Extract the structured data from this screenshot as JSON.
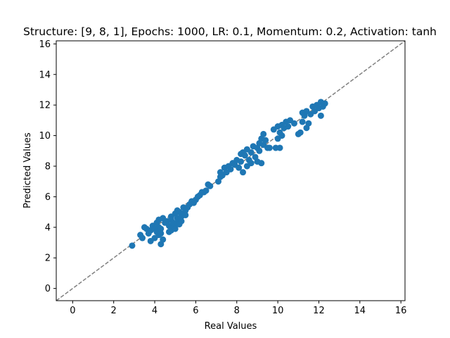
{
  "chart_data": {
    "type": "scatter",
    "title": "Structure: [9, 8, 1], Epochs: 1000, LR: 0.1, Momentum: 0.2, Activation: tanh",
    "xlabel": "Real Values",
    "ylabel": "Predicted Values",
    "xlim": [
      -0.8,
      16.2
    ],
    "ylim": [
      -0.8,
      16.2
    ],
    "xticks": [
      0,
      2,
      4,
      6,
      8,
      10,
      12,
      14,
      16
    ],
    "yticks": [
      0,
      2,
      4,
      6,
      8,
      10,
      12,
      14,
      16
    ],
    "grid": false,
    "reference_line": {
      "style": "dashed",
      "color": "#808080",
      "from": [
        -0.8,
        -0.8
      ],
      "to": [
        16.2,
        16.2
      ]
    },
    "marker_color": "#1f77b4",
    "series": [
      {
        "points": [
          [
            2.9,
            2.8
          ],
          [
            3.3,
            3.5
          ],
          [
            3.4,
            3.3
          ],
          [
            3.5,
            4.0
          ],
          [
            3.6,
            3.9
          ],
          [
            3.7,
            3.6
          ],
          [
            3.8,
            3.8
          ],
          [
            3.8,
            3.1
          ],
          [
            3.9,
            4.1
          ],
          [
            4.0,
            3.9
          ],
          [
            4.0,
            3.3
          ],
          [
            4.1,
            4.3
          ],
          [
            4.1,
            3.7
          ],
          [
            4.2,
            3.5
          ],
          [
            4.2,
            4.0
          ],
          [
            4.2,
            4.5
          ],
          [
            4.3,
            3.6
          ],
          [
            4.3,
            3.9
          ],
          [
            4.3,
            2.9
          ],
          [
            4.4,
            3.2
          ],
          [
            4.4,
            4.6
          ],
          [
            4.5,
            4.3
          ],
          [
            4.6,
            4.4
          ],
          [
            4.7,
            4.1
          ],
          [
            4.7,
            3.7
          ],
          [
            4.8,
            4.7
          ],
          [
            4.8,
            4.5
          ],
          [
            4.8,
            3.8
          ],
          [
            4.9,
            4.0
          ],
          [
            4.9,
            4.3
          ],
          [
            5.0,
            4.9
          ],
          [
            5.0,
            4.1
          ],
          [
            5.0,
            3.9
          ],
          [
            5.1,
            5.1
          ],
          [
            5.1,
            4.6
          ],
          [
            5.1,
            4.3
          ],
          [
            5.2,
            5.0
          ],
          [
            5.2,
            4.2
          ],
          [
            5.3,
            4.7
          ],
          [
            5.3,
            4.4
          ],
          [
            5.4,
            5.3
          ],
          [
            5.4,
            4.9
          ],
          [
            5.5,
            5.1
          ],
          [
            5.5,
            4.8
          ],
          [
            5.6,
            5.3
          ],
          [
            5.7,
            5.5
          ],
          [
            5.8,
            5.7
          ],
          [
            5.9,
            5.6
          ],
          [
            6.0,
            5.8
          ],
          [
            6.1,
            6.0
          ],
          [
            6.2,
            6.1
          ],
          [
            6.3,
            6.3
          ],
          [
            6.4,
            6.3
          ],
          [
            6.5,
            6.4
          ],
          [
            6.6,
            6.8
          ],
          [
            6.7,
            6.7
          ],
          [
            7.1,
            7.0
          ],
          [
            7.2,
            7.3
          ],
          [
            7.2,
            7.6
          ],
          [
            7.3,
            7.4
          ],
          [
            7.4,
            7.9
          ],
          [
            7.5,
            7.6
          ],
          [
            7.6,
            8.0
          ],
          [
            7.7,
            7.8
          ],
          [
            7.8,
            8.2
          ],
          [
            7.9,
            8.1
          ],
          [
            8.0,
            8.4
          ],
          [
            8.1,
            7.9
          ],
          [
            8.2,
            8.3
          ],
          [
            8.2,
            8.8
          ],
          [
            8.3,
            7.6
          ],
          [
            8.3,
            8.9
          ],
          [
            8.4,
            8.7
          ],
          [
            8.5,
            8.0
          ],
          [
            8.5,
            9.1
          ],
          [
            8.6,
            8.4
          ],
          [
            8.7,
            8.2
          ],
          [
            8.7,
            8.9
          ],
          [
            8.8,
            9.3
          ],
          [
            8.9,
            8.6
          ],
          [
            9.0,
            8.3
          ],
          [
            9.0,
            9.2
          ],
          [
            9.1,
            9.5
          ],
          [
            9.1,
            9.0
          ],
          [
            9.2,
            8.2
          ],
          [
            9.2,
            9.8
          ],
          [
            9.3,
            10.1
          ],
          [
            9.3,
            9.4
          ],
          [
            9.4,
            9.7
          ],
          [
            9.5,
            9.2
          ],
          [
            9.6,
            9.2
          ],
          [
            9.8,
            10.4
          ],
          [
            9.9,
            9.2
          ],
          [
            10.0,
            10.6
          ],
          [
            10.0,
            9.8
          ],
          [
            10.1,
            9.2
          ],
          [
            10.1,
            10.2
          ],
          [
            10.2,
            10.7
          ],
          [
            10.2,
            10.0
          ],
          [
            10.3,
            10.5
          ],
          [
            10.4,
            10.9
          ],
          [
            10.5,
            10.6
          ],
          [
            10.6,
            11.0
          ],
          [
            10.8,
            10.8
          ],
          [
            11.0,
            10.1
          ],
          [
            11.1,
            10.2
          ],
          [
            11.2,
            11.5
          ],
          [
            11.2,
            10.9
          ],
          [
            11.3,
            11.3
          ],
          [
            11.4,
            11.6
          ],
          [
            11.4,
            10.5
          ],
          [
            11.5,
            10.8
          ],
          [
            11.6,
            11.4
          ],
          [
            11.7,
            11.9
          ],
          [
            11.8,
            11.6
          ],
          [
            11.9,
            12.0
          ],
          [
            12.0,
            11.8
          ],
          [
            12.1,
            11.3
          ],
          [
            12.1,
            12.2
          ],
          [
            12.2,
            11.9
          ],
          [
            12.3,
            12.1
          ]
        ]
      }
    ]
  }
}
